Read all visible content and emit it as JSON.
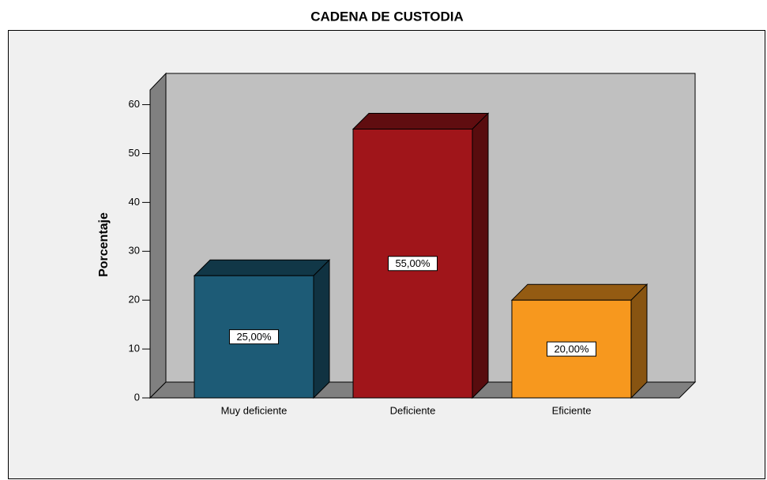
{
  "chart_data": {
    "type": "bar3d",
    "title": "CADENA DE CUSTODIA",
    "y_label": "Porcentaje",
    "categories": [
      "Muy deficiente",
      "Deficiente",
      "Eficiente"
    ],
    "values": [
      25,
      55,
      20
    ],
    "value_labels": [
      "25,00%",
      "55,00%",
      "20,00%"
    ],
    "colors": [
      "#1d5b76",
      "#a0151a",
      "#f7981e"
    ],
    "ylim": [
      0,
      63
    ],
    "yticks": [
      0,
      10,
      20,
      30,
      40,
      50,
      60
    ]
  }
}
